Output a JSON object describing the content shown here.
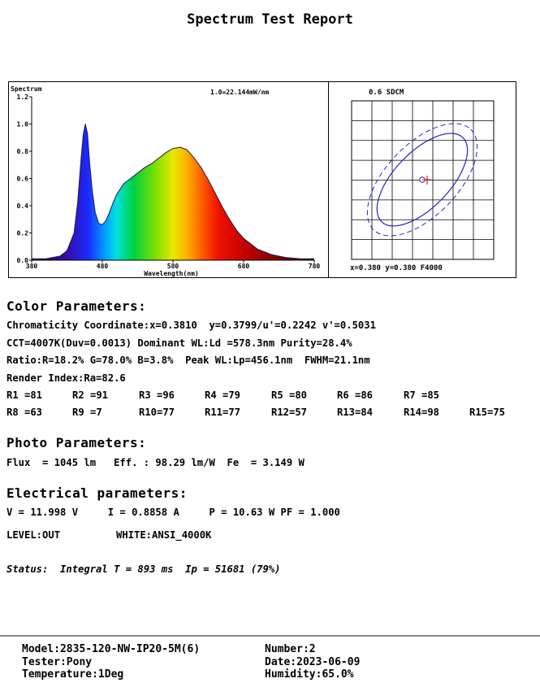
{
  "report_title": "Spectrum Test Report",
  "chart_data": [
    {
      "type": "line",
      "title": "Spectrum",
      "annotation": "1.0=22.144mW/nm",
      "xlabel": "Wavelength(nm)",
      "xlim": [
        380,
        780
      ],
      "ylim": [
        0,
        1.2
      ],
      "x_ticks": [
        "380",
        "480",
        "580",
        "680",
        "780"
      ],
      "y_ticks": [
        "0.0",
        "0.2",
        "0.4",
        "0.6",
        "0.8",
        "1.0",
        "1.2"
      ],
      "fill": "visible-spectrum gradient",
      "x": [
        380,
        400,
        420,
        430,
        440,
        445,
        450,
        453,
        456,
        459,
        462,
        466,
        470,
        475,
        480,
        485,
        490,
        495,
        500,
        510,
        520,
        530,
        540,
        550,
        560,
        570,
        580,
        590,
        600,
        610,
        620,
        630,
        640,
        650,
        660,
        670,
        680,
        690,
        700,
        710,
        720,
        730,
        740,
        750,
        760,
        770,
        780
      ],
      "values": [
        0.01,
        0.01,
        0.03,
        0.07,
        0.2,
        0.42,
        0.75,
        0.92,
        1.0,
        0.93,
        0.72,
        0.5,
        0.35,
        0.27,
        0.26,
        0.29,
        0.35,
        0.42,
        0.48,
        0.56,
        0.6,
        0.64,
        0.68,
        0.71,
        0.75,
        0.79,
        0.82,
        0.83,
        0.81,
        0.75,
        0.68,
        0.59,
        0.49,
        0.39,
        0.3,
        0.22,
        0.16,
        0.12,
        0.08,
        0.06,
        0.04,
        0.03,
        0.02,
        0.015,
        0.01,
        0.01,
        0.01
      ]
    },
    {
      "type": "scatter",
      "title": "0.6 SDCM",
      "grid": true,
      "point": {
        "x": 0.38,
        "y": 0.38
      },
      "footer": "x=0.380 y=0.380 F4000",
      "colors": {
        "ellipse": "#2222cc",
        "target": "#2222cc",
        "cross": "#dd0000"
      }
    }
  ],
  "color_params": {
    "heading": "Color Parameters:",
    "line1": "Chromaticity Coordinate:x=0.3810  y=0.3799/u'=0.2242 v'=0.5031",
    "line2": "CCT=4007K(Duv=0.0013) Dominant WL:Ld =578.3nm Purity=28.4%",
    "line3": "Ratio:R=18.2% G=78.0% B=3.8%  Peak WL:Lp=456.1nm  FWHM=21.1nm",
    "line4": "Render Index:Ra=82.6",
    "r_row1": [
      "R1 =81",
      "R2 =91",
      "R3 =96",
      "R4 =79",
      "R5 =80",
      "R6 =86",
      "R7 =85"
    ],
    "r_row2": [
      "R8 =63",
      "R9 =7",
      "R10=77",
      "R11=77",
      "R12=57",
      "R13=84",
      "R14=98",
      "R15=75"
    ]
  },
  "photo_params": {
    "heading": "Photo Parameters:",
    "line": "Flux  = 1045 lm   Eff. : 98.29 lm/W  Fe  = 3.149 W"
  },
  "electrical_params": {
    "heading": "Electrical parameters:",
    "line": "V = 11.998 V     I = 0.8858 A     P = 10.63 W PF = 1.000",
    "level": "LEVEL:OUT",
    "white": "WHITE:ANSI_4000K"
  },
  "status": "Status:  Integral T = 893 ms  Ip = 51681 (79%)",
  "footer": {
    "model": "Model:2835-120-NW-IP20-5M(6)",
    "tester": "Tester:Pony",
    "temperature": "Temperature:1Deg",
    "number": "Number:2",
    "date": "Date:2023-06-09",
    "humidity": "Humidity:65.0%"
  }
}
